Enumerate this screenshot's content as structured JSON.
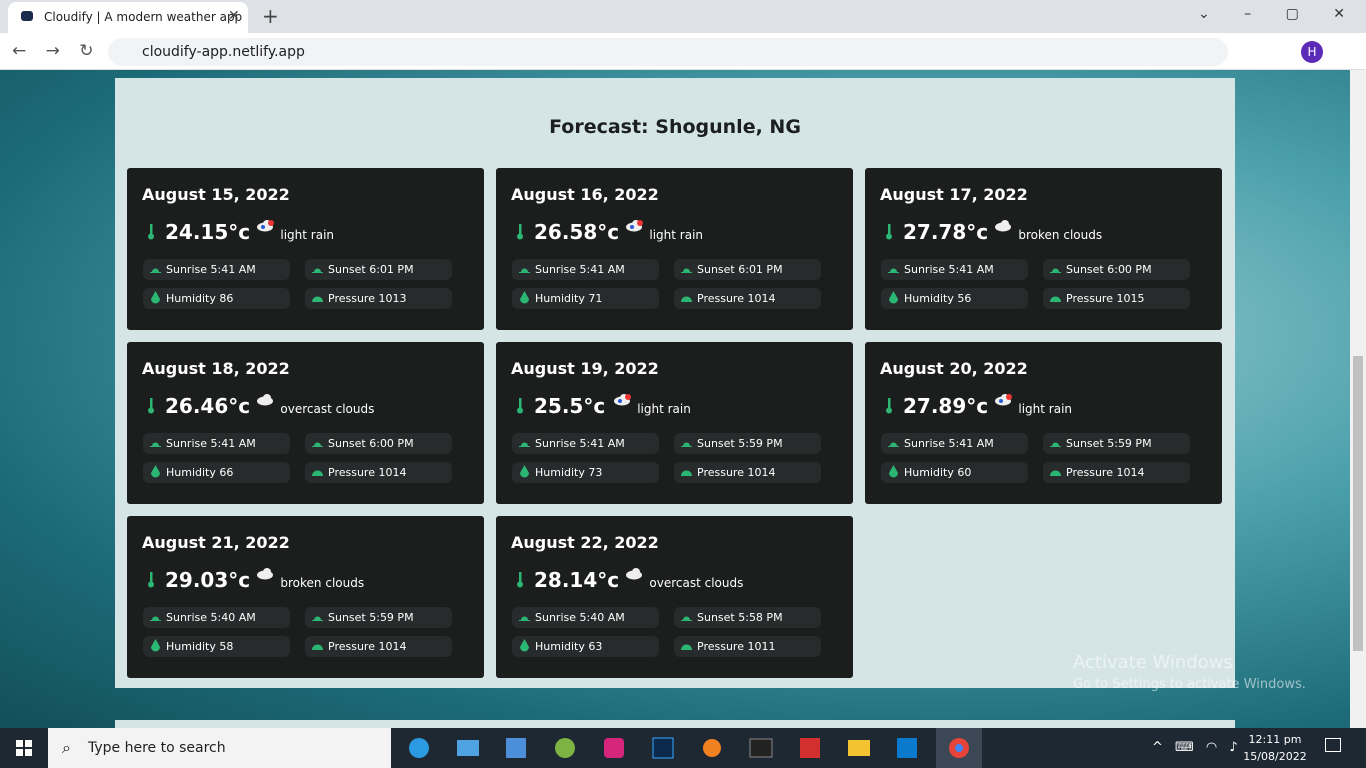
{
  "browser": {
    "tab_title": "Cloudify | A modern weather app",
    "url": "cloudify-app.netlify.app",
    "profile": "H"
  },
  "page": {
    "title": "Forecast: Shogunle, NG",
    "cards": [
      {
        "date": "August 15, 2022",
        "temp": "24.15°c",
        "desc": "light rain",
        "sunrise": "Sunrise 5:41 AM",
        "sunset": "Sunset 6:01 PM",
        "humidity": "Humidity 86",
        "pressure": "Pressure 1013"
      },
      {
        "date": "August 16, 2022",
        "temp": "26.58°c",
        "desc": "light rain",
        "sunrise": "Sunrise 5:41 AM",
        "sunset": "Sunset 6:01 PM",
        "humidity": "Humidity 71",
        "pressure": "Pressure 1014"
      },
      {
        "date": "August 17, 2022",
        "temp": "27.78°c",
        "desc": "broken clouds",
        "sunrise": "Sunrise 5:41 AM",
        "sunset": "Sunset 6:00 PM",
        "humidity": "Humidity 56",
        "pressure": "Pressure 1015"
      },
      {
        "date": "August 18, 2022",
        "temp": "26.46°c",
        "desc": "overcast clouds",
        "sunrise": "Sunrise 5:41 AM",
        "sunset": "Sunset 6:00 PM",
        "humidity": "Humidity 66",
        "pressure": "Pressure 1014"
      },
      {
        "date": "August 19, 2022",
        "temp": "25.5°c",
        "desc": "light rain",
        "sunrise": "Sunrise 5:41 AM",
        "sunset": "Sunset 5:59 PM",
        "humidity": "Humidity 73",
        "pressure": "Pressure 1014"
      },
      {
        "date": "August 20, 2022",
        "temp": "27.89°c",
        "desc": "light rain",
        "sunrise": "Sunrise 5:41 AM",
        "sunset": "Sunset 5:59 PM",
        "humidity": "Humidity 60",
        "pressure": "Pressure 1014"
      },
      {
        "date": "August 21, 2022",
        "temp": "29.03°c",
        "desc": "broken clouds",
        "sunrise": "Sunrise 5:40 AM",
        "sunset": "Sunset 5:59 PM",
        "humidity": "Humidity 58",
        "pressure": "Pressure 1014"
      },
      {
        "date": "August 22, 2022",
        "temp": "28.14°c",
        "desc": "overcast clouds",
        "sunrise": "Sunrise 5:40 AM",
        "sunset": "Sunset 5:58 PM",
        "humidity": "Humidity 63",
        "pressure": "Pressure 1011"
      }
    ]
  },
  "watermark": {
    "line1": "Activate Windows",
    "line2": "Go to Settings to activate Windows."
  },
  "taskbar": {
    "search": "Type here to search",
    "time": "12:11 pm",
    "date": "15/08/2022"
  }
}
